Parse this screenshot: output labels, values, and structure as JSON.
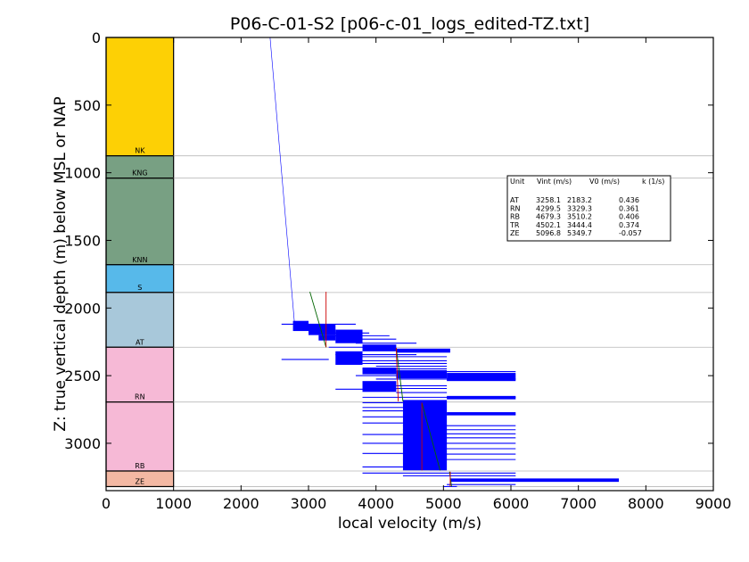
{
  "chart_data": {
    "type": "well-log",
    "title": "P06-C-01-S2 [p06-c-01_logs_edited-TZ.txt]",
    "xlabel": "local velocity (m/s)",
    "ylabel": "Z: true vertical depth (m) below MSL or NAP",
    "xlim": [
      0,
      9000
    ],
    "ylim": [
      3350,
      0
    ],
    "x_ticks": [
      "0",
      "1000",
      "2000",
      "3000",
      "4000",
      "5000",
      "6000",
      "7000",
      "8000",
      "9000"
    ],
    "y_ticks": [
      "0",
      "500",
      "1000",
      "1500",
      "2000",
      "2500",
      "3000"
    ],
    "x_tick_values": [
      0,
      1000,
      2000,
      3000,
      4000,
      5000,
      6000,
      7000,
      8000,
      9000
    ],
    "y_tick_values": [
      0,
      500,
      1000,
      1500,
      2000,
      2500,
      3000
    ],
    "grid": "off",
    "strat_units": [
      {
        "name": "NK",
        "top": 0,
        "base": 875,
        "color": "#fdd005"
      },
      {
        "name": "KNG",
        "top": 875,
        "base": 1040,
        "color": "#78a083"
      },
      {
        "name": "KNN",
        "top": 1040,
        "base": 1680,
        "color": "#78a083"
      },
      {
        "name": "S",
        "top": 1680,
        "base": 1885,
        "color": "#57b9ea"
      },
      {
        "name": "AT",
        "top": 1885,
        "base": 2290,
        "color": "#a8c8da"
      },
      {
        "name": "RN",
        "top": 2290,
        "base": 2695,
        "color": "#f6b9d6"
      },
      {
        "name": "RB",
        "top": 2695,
        "base": 3205,
        "color": "#f6b9d6"
      },
      {
        "name": "ZE",
        "top": 3205,
        "base": 3320,
        "color": "#f3b8a3"
      }
    ],
    "horizon_depths": [
      875,
      1040,
      1680,
      1885,
      2290,
      2695,
      3205,
      3320
    ],
    "series": [
      {
        "color": "#0000ff",
        "points": [
          [
            2430,
            0
          ],
          [
            2790,
            2100
          ]
        ]
      },
      {
        "color": "#006400",
        "points": [
          [
            3020,
            1880
          ],
          [
            3260,
            2290
          ]
        ]
      },
      {
        "color": "#cc0000",
        "points": [
          [
            3260,
            1880
          ],
          [
            3260,
            2290
          ]
        ]
      },
      {
        "color": "#006400",
        "points": [
          [
            4300,
            2295
          ],
          [
            4400,
            2690
          ]
        ]
      },
      {
        "color": "#cc0000",
        "points": [
          [
            4300,
            2295
          ],
          [
            4330,
            2690
          ]
        ]
      },
      {
        "color": "#006400",
        "points": [
          [
            4680,
            2700
          ],
          [
            4950,
            3200
          ]
        ]
      },
      {
        "color": "#cc0000",
        "points": [
          [
            4680,
            2700
          ],
          [
            4680,
            3200
          ]
        ]
      },
      {
        "color": "#006400",
        "points": [
          [
            5090,
            3210
          ],
          [
            5120,
            3320
          ]
        ]
      },
      {
        "color": "#cc0000",
        "points": [
          [
            5100,
            3210
          ],
          [
            5100,
            3320
          ]
        ]
      }
    ],
    "velocity_blocks": [
      {
        "x0": 2770,
        "x1": 3000,
        "d0": 2095,
        "d1": 2170
      },
      {
        "x0": 3000,
        "x1": 3400,
        "d0": 2120,
        "d1": 2200
      },
      {
        "x0": 3150,
        "x1": 3400,
        "d0": 2200,
        "d1": 2240
      },
      {
        "x0": 3400,
        "x1": 3800,
        "d0": 2160,
        "d1": 2260
      },
      {
        "x0": 3400,
        "x1": 3800,
        "d0": 2320,
        "d1": 2420
      },
      {
        "x0": 3800,
        "x1": 4300,
        "d0": 2270,
        "d1": 2320
      },
      {
        "x0": 3800,
        "x1": 4300,
        "d0": 2440,
        "d1": 2490
      },
      {
        "x0": 3800,
        "x1": 4300,
        "d0": 2540,
        "d1": 2620
      },
      {
        "x0": 4300,
        "x1": 5100,
        "d0": 2300,
        "d1": 2330
      },
      {
        "x0": 4300,
        "x1": 5050,
        "d0": 2460,
        "d1": 2520
      },
      {
        "x0": 5050,
        "x1": 6070,
        "d0": 2480,
        "d1": 2540
      },
      {
        "x0": 4400,
        "x1": 5050,
        "d0": 2680,
        "d1": 3200
      },
      {
        "x0": 5050,
        "x1": 6070,
        "d0": 2650,
        "d1": 2675
      },
      {
        "x0": 5050,
        "x1": 6070,
        "d0": 2770,
        "d1": 2790
      },
      {
        "x0": 5100,
        "x1": 7600,
        "d0": 3260,
        "d1": 3285
      }
    ],
    "velocity_lines": [
      {
        "x0": 2600,
        "x1": 3700,
        "d": 2120
      },
      {
        "x0": 2600,
        "x1": 3300,
        "d": 2380
      },
      {
        "x0": 3000,
        "x1": 3900,
        "d": 2185
      },
      {
        "x0": 3200,
        "x1": 4200,
        "d": 2205
      },
      {
        "x0": 3600,
        "x1": 4300,
        "d": 2230
      },
      {
        "x0": 3700,
        "x1": 4600,
        "d": 2260
      },
      {
        "x0": 3300,
        "x1": 4300,
        "d": 2290
      },
      {
        "x0": 3400,
        "x1": 4600,
        "d": 2345
      },
      {
        "x0": 3600,
        "x1": 5050,
        "d": 2360
      },
      {
        "x0": 3700,
        "x1": 5050,
        "d": 2390
      },
      {
        "x0": 3800,
        "x1": 5050,
        "d": 2410
      },
      {
        "x0": 4000,
        "x1": 5050,
        "d": 2430
      },
      {
        "x0": 3800,
        "x1": 5050,
        "d": 2450
      },
      {
        "x0": 4300,
        "x1": 6070,
        "d": 2470
      },
      {
        "x0": 3700,
        "x1": 5050,
        "d": 2500
      },
      {
        "x0": 4000,
        "x1": 6070,
        "d": 2525
      },
      {
        "x0": 3400,
        "x1": 4300,
        "d": 2600
      },
      {
        "x0": 4300,
        "x1": 5050,
        "d": 2575
      },
      {
        "x0": 4300,
        "x1": 5050,
        "d": 2595
      },
      {
        "x0": 4300,
        "x1": 5050,
        "d": 2625
      },
      {
        "x0": 3800,
        "x1": 6070,
        "d": 2660
      },
      {
        "x0": 3800,
        "x1": 4400,
        "d": 2700
      },
      {
        "x0": 3800,
        "x1": 4400,
        "d": 2735
      },
      {
        "x0": 3800,
        "x1": 4400,
        "d": 2760
      },
      {
        "x0": 4400,
        "x1": 6070,
        "d": 2790
      },
      {
        "x0": 3800,
        "x1": 4400,
        "d": 2805
      },
      {
        "x0": 3800,
        "x1": 4400,
        "d": 2850
      },
      {
        "x0": 4400,
        "x1": 6070,
        "d": 2870
      },
      {
        "x0": 4400,
        "x1": 6070,
        "d": 2900
      },
      {
        "x0": 4400,
        "x1": 6070,
        "d": 2930
      },
      {
        "x0": 3800,
        "x1": 4400,
        "d": 2935
      },
      {
        "x0": 4400,
        "x1": 6070,
        "d": 2960
      },
      {
        "x0": 3800,
        "x1": 4400,
        "d": 3000
      },
      {
        "x0": 4400,
        "x1": 6070,
        "d": 3000
      },
      {
        "x0": 4400,
        "x1": 6070,
        "d": 3040
      },
      {
        "x0": 3800,
        "x1": 4400,
        "d": 3075
      },
      {
        "x0": 4400,
        "x1": 6070,
        "d": 3080
      },
      {
        "x0": 4400,
        "x1": 6070,
        "d": 3120
      },
      {
        "x0": 3800,
        "x1": 4400,
        "d": 3175
      },
      {
        "x0": 3800,
        "x1": 6070,
        "d": 3220
      },
      {
        "x0": 4400,
        "x1": 6070,
        "d": 3240
      },
      {
        "x0": 5050,
        "x1": 6070,
        "d": 3305
      },
      {
        "x0": 5000,
        "x1": 5200,
        "d": 3320
      }
    ],
    "table": {
      "header": [
        "Unit",
        "Vint (m/s)",
        "V0 (m/s)",
        "k (1/s)"
      ],
      "rows": [
        [
          "AT",
          "3258.1",
          "2183.2",
          "0.436"
        ],
        [
          "RN",
          "4299.5",
          "3329.3",
          "0.361"
        ],
        [
          "RB",
          "4679.3",
          "3510.2",
          "0.406"
        ],
        [
          "TR",
          "4502.1",
          "3444.4",
          "0.374"
        ],
        [
          "ZE",
          "5096.8",
          "5349.7",
          "-0.057"
        ]
      ]
    }
  }
}
